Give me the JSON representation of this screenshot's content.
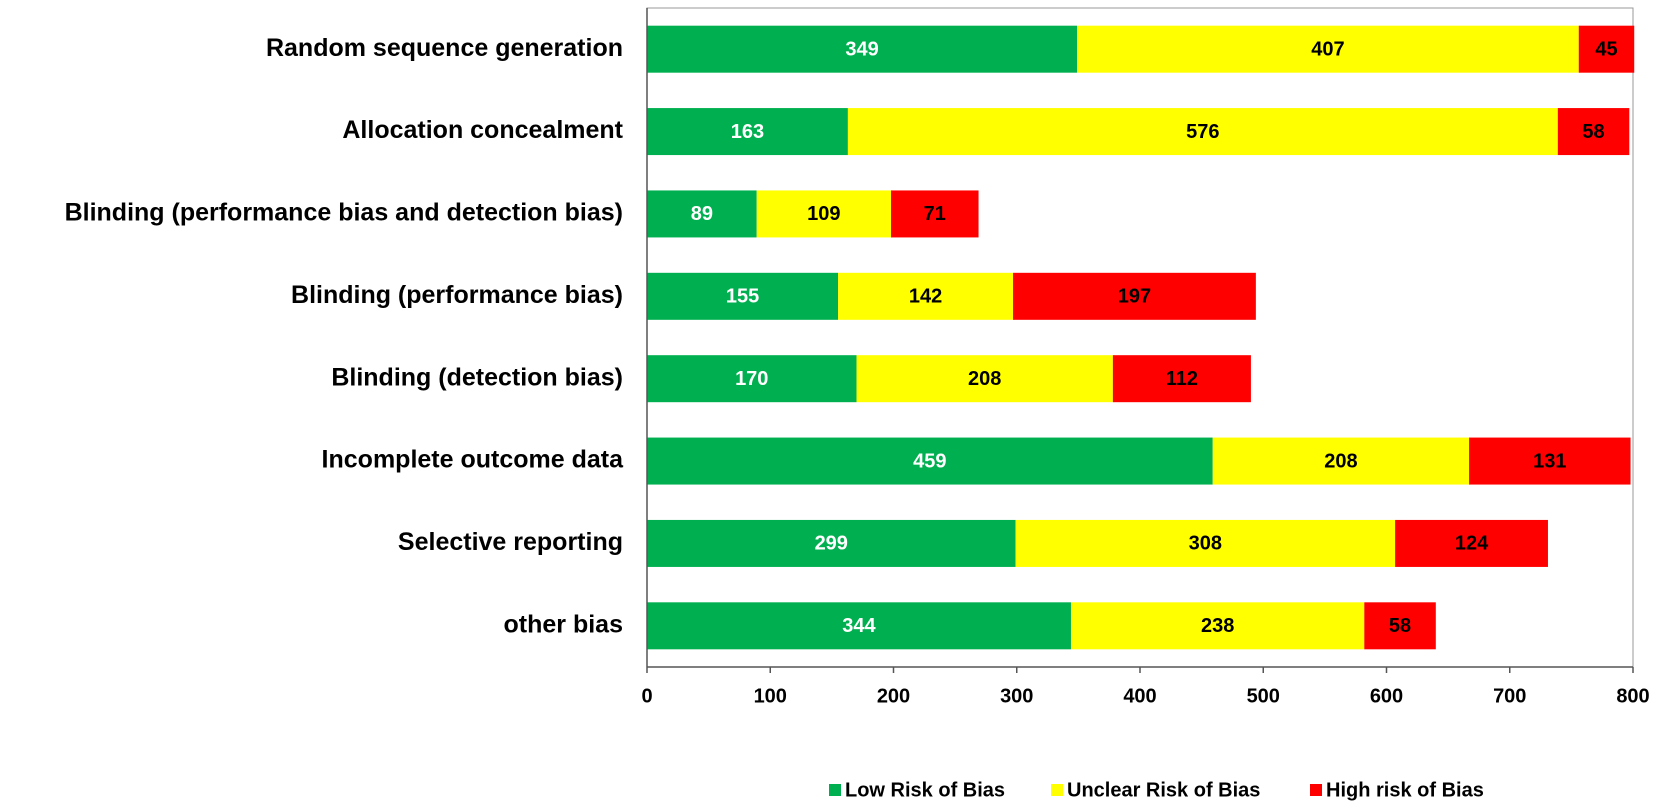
{
  "chart_data": {
    "type": "stacked-barh",
    "categories": [
      "Random sequence generation",
      "Allocation concealment",
      "Blinding (performance bias and detection bias)",
      "Blinding (performance bias)",
      "Blinding (detection bias)",
      "Incomplete outcome data",
      "Selective reporting",
      "other bias"
    ],
    "series": [
      {
        "name": "Low Risk of Bias",
        "color": "#00b050",
        "label_color": "#ffffff",
        "values": [
          349,
          163,
          89,
          155,
          170,
          459,
          299,
          344
        ]
      },
      {
        "name": "Unclear Risk of Bias",
        "color": "#ffff00",
        "label_color": "#000000",
        "values": [
          407,
          576,
          109,
          142,
          208,
          208,
          308,
          238
        ]
      },
      {
        "name": "High risk of Bias",
        "color": "#ff0000",
        "label_color": "#000000",
        "values": [
          45,
          58,
          71,
          197,
          112,
          131,
          124,
          58
        ]
      }
    ],
    "xlim": [
      0,
      800
    ],
    "xticks": [
      0,
      100,
      200,
      300,
      400,
      500,
      600,
      700,
      800
    ],
    "grid": false,
    "legend": "bottom"
  }
}
